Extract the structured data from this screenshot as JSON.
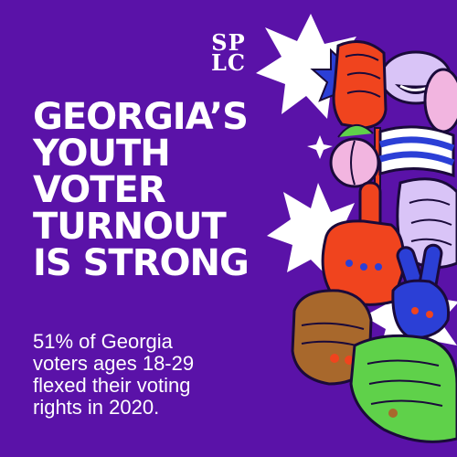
{
  "brand": {
    "logo_lines": [
      "SP",
      "LC"
    ],
    "logo_name": "SPLC"
  },
  "headline": {
    "lines": [
      "GEORGIA’S",
      "YOUTH",
      "VOTER",
      "TURNOUT",
      "IS STRONG"
    ]
  },
  "body": {
    "lines": [
      "51% of Georgia",
      "voters ages 18-29",
      "flexed their voting",
      "rights in 2020."
    ]
  },
  "colors": {
    "background": "#5a12a8",
    "text": "#ffffff",
    "red_hand": "#f0441e",
    "blue_hand": "#2b3fd6",
    "pink": "#f2b5e0",
    "lavender": "#d9c4f7",
    "green_hand": "#5fd14a",
    "brown_hand": "#a8682c",
    "outline": "#1a0a3a"
  },
  "illustration": {
    "icons": [
      "raised-fist-icon",
      "peace-sign-hand-icon",
      "pointing-finger-icon",
      "flag-icon",
      "peach-icon",
      "sparkle-icon",
      "megaphone-mouth-icon"
    ]
  }
}
